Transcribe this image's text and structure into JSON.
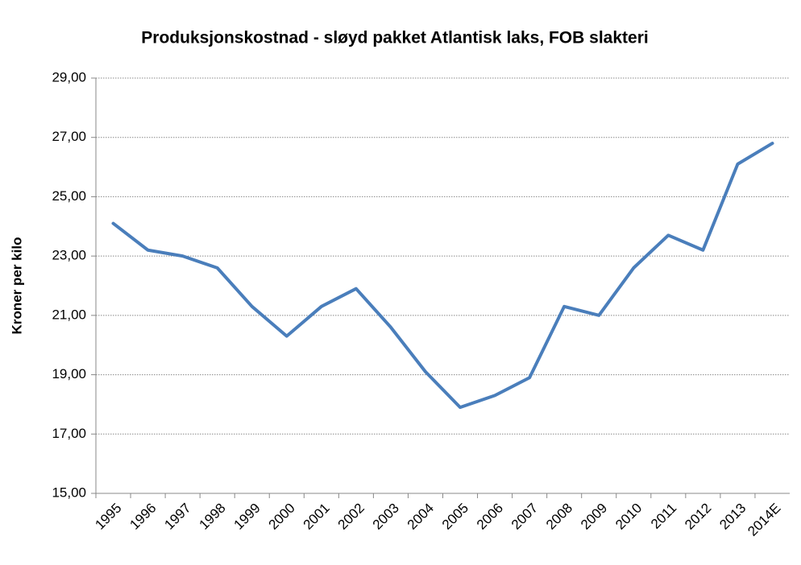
{
  "chart_data": {
    "type": "line",
    "title": "Produksjonskostnad  - sløyd pakket Atlantisk laks, FOB slakteri",
    "y_label": "Kroner per kilo",
    "categories": [
      "1995",
      "1996",
      "1997",
      "1998",
      "1999",
      "2000",
      "2001",
      "2002",
      "2003",
      "2004",
      "2005",
      "2006",
      "2007",
      "2008",
      "2009",
      "2010",
      "2011",
      "2012",
      "2013",
      "2014E"
    ],
    "series": [
      {
        "name": "Produksjonskostnad",
        "color": "#4a7ebb",
        "values": [
          24.1,
          23.2,
          23.0,
          22.6,
          21.3,
          20.3,
          21.3,
          21.9,
          20.6,
          19.1,
          17.9,
          18.3,
          18.9,
          21.3,
          21.0,
          22.6,
          23.7,
          23.2,
          26.1,
          26.8
        ]
      }
    ],
    "ylim": [
      15,
      29
    ],
    "yticks": [
      {
        "value": 15,
        "label": "15,00"
      },
      {
        "value": 17,
        "label": "17,00"
      },
      {
        "value": 19,
        "label": "19,00"
      },
      {
        "value": 21,
        "label": "21,00"
      },
      {
        "value": 23,
        "label": "23,00"
      },
      {
        "value": 25,
        "label": "25,00"
      },
      {
        "value": 27,
        "label": "27,00"
      },
      {
        "value": 29,
        "label": "29,00"
      }
    ],
    "grid": true
  }
}
